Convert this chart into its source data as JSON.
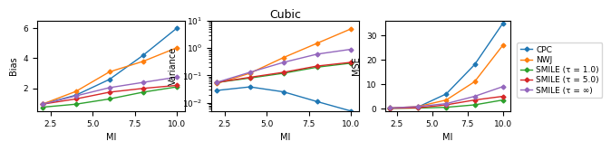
{
  "title": "Cubic",
  "mi_values": [
    2.0,
    4.0,
    6.0,
    8.0,
    10.0
  ],
  "bias": {
    "CPC": [
      0.95,
      1.55,
      2.6,
      4.2,
      6.0
    ],
    "NWJ": [
      0.95,
      1.8,
      3.1,
      3.8,
      4.7
    ],
    "SMILE_1": [
      0.75,
      0.95,
      1.3,
      1.75,
      2.1
    ],
    "SMILE_5": [
      0.95,
      1.3,
      1.75,
      2.0,
      2.2
    ],
    "SMILE_inf": [
      0.95,
      1.5,
      2.05,
      2.4,
      2.75
    ]
  },
  "variance": {
    "CPC": [
      0.028,
      0.038,
      0.025,
      0.011,
      0.005
    ],
    "NWJ": [
      0.05,
      0.12,
      0.45,
      1.5,
      5.0
    ],
    "SMILE_1": [
      0.055,
      0.08,
      0.12,
      0.2,
      0.28
    ],
    "SMILE_5": [
      0.055,
      0.085,
      0.13,
      0.22,
      0.3
    ],
    "SMILE_inf": [
      0.055,
      0.13,
      0.3,
      0.6,
      0.9
    ]
  },
  "mse": {
    "CPC": [
      0.2,
      0.6,
      6.0,
      18.0,
      35.0
    ],
    "NWJ": [
      0.2,
      0.8,
      3.5,
      11.0,
      26.0
    ],
    "SMILE_1": [
      0.1,
      0.2,
      0.5,
      1.5,
      3.5
    ],
    "SMILE_5": [
      0.1,
      0.3,
      1.5,
      3.5,
      5.0
    ],
    "SMILE_inf": [
      0.2,
      0.8,
      2.0,
      5.0,
      9.0
    ]
  },
  "colors": {
    "CPC": "#1f77b4",
    "NWJ": "#ff7f0e",
    "SMILE_1": "#2ca02c",
    "SMILE_5": "#d62728",
    "SMILE_inf": "#9467bd"
  },
  "labels": {
    "CPC": "CPC",
    "NWJ": "NWJ",
    "SMILE_1": "SMILE (τ = 1.0)",
    "SMILE_5": "SMILE (τ = 5.0)",
    "SMILE_inf": "SMILE (τ = ∞)"
  },
  "marker": "D",
  "markersize": 2.5,
  "linewidth": 1.0,
  "bias_ylim": [
    0.5,
    6.5
  ],
  "bias_yticks": [
    2,
    4,
    6
  ],
  "mse_ylim": [
    -1,
    36
  ],
  "mse_yticks": [
    0,
    10,
    20,
    30
  ],
  "xticks": [
    2.5,
    5.0,
    7.5,
    10.0
  ],
  "xlim": [
    1.7,
    10.5
  ]
}
